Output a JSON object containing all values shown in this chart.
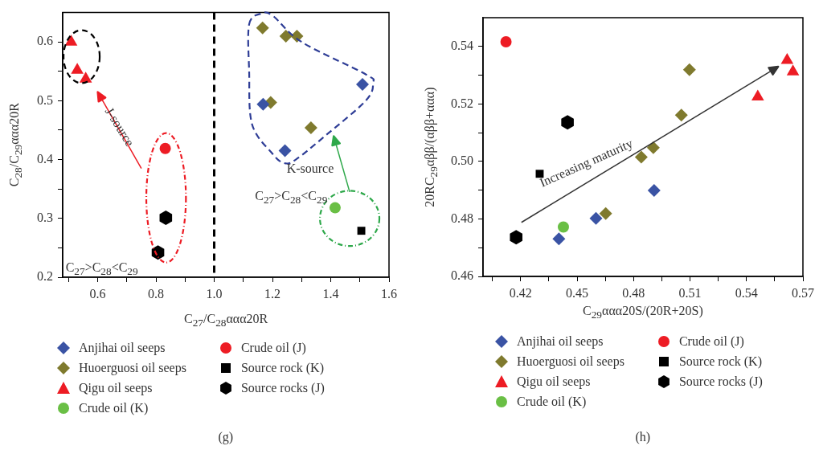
{
  "chart_data": [
    {
      "type": "scatter",
      "xlabel": "C$_{27}$/C$_{28}$ααα20R",
      "ylabel": "C$_{28}$/C$_{29}$ααα20R",
      "xlim": [
        0.48,
        1.6
      ],
      "ylim": [
        0.2,
        0.65
      ],
      "xticks": [
        {
          "value": 0.5,
          "label": null
        },
        0.6,
        {
          "value": 0.7,
          "label": null
        },
        0.8,
        {
          "value": 0.9,
          "label": null
        },
        {
          "value": 1,
          "label": "1.0"
        },
        {
          "value": 1.1,
          "label": null
        },
        1.2,
        {
          "value": 1.3,
          "label": null
        },
        1.4,
        {
          "value": 1.5,
          "label": null
        },
        1.6
      ],
      "yticks": [
        0.2,
        {
          "value": 0.25,
          "label": null
        },
        0.3,
        {
          "value": 0.35,
          "label": null
        },
        0.4,
        {
          "value": 0.45,
          "label": null
        },
        0.5,
        {
          "value": 0.55,
          "label": null
        },
        0.6
      ],
      "grid": false,
      "legend": "bottom",
      "ref_lines": [
        {
          "axis": "x",
          "value": 1,
          "color": "#000000",
          "line_style": "dashed"
        }
      ],
      "annotations": [
        "J-source",
        "K-source",
        "C$_{27}$>C$_{28}$<C$_{29}$",
        "C$_{27}$>C$_{28}$<C$_{29}$",
        "(g)"
      ],
      "series": [
        {
          "name": "Anjihai oil seeps",
          "color": "#3a53a4",
          "marker": "diamond",
          "x": [
            1.168,
            1.243,
            1.509
          ],
          "values": [
            0.494,
            0.415,
            0.528
          ]
        },
        {
          "name": "Huoerguosi oil seeps",
          "color": "#7f7a2e",
          "marker": "diamond",
          "x": [
            1.166,
            1.246,
            1.284,
            1.194,
            1.332
          ],
          "values": [
            0.624,
            0.61,
            0.61,
            0.497,
            0.454
          ]
        },
        {
          "name": "Qigu oil seeps",
          "color": "#ed1c24",
          "marker": "triangle",
          "x": [
            0.509,
            0.53,
            0.559
          ],
          "values": [
            0.6,
            0.552,
            0.537
          ]
        },
        {
          "name": "Crude oil (K)",
          "color": "#6abf45",
          "marker": "circle",
          "x": [
            1.415
          ],
          "values": [
            0.318
          ]
        },
        {
          "name": "Crude oil (J)",
          "color": "#ed1c24",
          "marker": "circle",
          "x": [
            0.832
          ],
          "values": [
            0.419
          ]
        },
        {
          "name": "Source rock (K)",
          "color": "#000000",
          "marker": "square",
          "x": [
            1.505
          ],
          "values": [
            0.279
          ]
        },
        {
          "name": "Source rocks (J)",
          "color": "#000000",
          "x": [
            0.834,
            0.807
          ],
          "values": [
            0.301,
            0.242
          ]
        }
      ]
    },
    {
      "type": "scatter",
      "xlabel": "C$_{29}$ααα20S/(20R+20S)",
      "ylabel": "20RC$_{29}$αββ/(αββ+ααα)",
      "xlim": [
        0.4,
        0.57
      ],
      "ylim": [
        0.46,
        0.55
      ],
      "xticks": [
        {
          "value": 0.405,
          "label": null
        },
        0.42,
        {
          "value": 0.435,
          "label": null
        },
        0.45,
        {
          "value": 0.465,
          "label": null
        },
        0.48,
        {
          "value": 0.495,
          "label": null
        },
        0.51,
        {
          "value": 0.525,
          "label": null
        },
        0.54,
        {
          "value": 0.555,
          "label": null
        },
        0.57
      ],
      "yticks": [
        0.46,
        {
          "value": 0.47,
          "label": null
        },
        0.48,
        {
          "value": 0.49,
          "label": null
        },
        {
          "value": 0.5,
          "label": "0.50"
        },
        {
          "value": 0.51,
          "label": null
        },
        0.52,
        {
          "value": 0.53,
          "label": null
        },
        0.54
      ],
      "grid": false,
      "legend": "bottom",
      "annotations": [
        "Increasing maturity",
        "(h)"
      ],
      "series": [
        {
          "name": "Anjihai oil seeps",
          "color": "#3a53a4",
          "marker": "diamond",
          "x": [
            0.4403,
            0.46,
            0.4909
          ],
          "values": [
            0.4731,
            0.4802,
            0.4899
          ]
        },
        {
          "name": "Huoerguosi oil seeps",
          "color": "#7f7a2e",
          "marker": "diamond",
          "x": [
            0.4652,
            0.4841,
            0.4905,
            0.5054,
            0.5097
          ],
          "values": [
            0.4819,
            0.5015,
            0.5048,
            0.5161,
            0.5319
          ]
        },
        {
          "name": "Qigu oil seeps",
          "color": "#ed1c24",
          "marker": "triangle",
          "x": [
            0.546,
            0.5616,
            0.5647
          ],
          "values": [
            0.5225,
            0.5352,
            0.5312
          ]
        },
        {
          "name": "Crude oil (K)",
          "color": "#6abf45",
          "marker": "circle",
          "x": [
            0.4427
          ],
          "values": [
            0.4772
          ]
        },
        {
          "name": "Crude oil (J)",
          "color": "#ed1c24",
          "marker": "circle",
          "x": [
            0.4122
          ],
          "values": [
            0.5416
          ]
        },
        {
          "name": "Source rock (K)",
          "color": "#000000",
          "marker": "square",
          "x": [
            0.4301
          ],
          "values": [
            0.4957
          ]
        },
        {
          "name": "Source rocks (J)",
          "color": "#000000",
          "x": [
            0.4449,
            0.4176
          ],
          "values": [
            0.5136,
            0.4736
          ]
        }
      ]
    }
  ]
}
